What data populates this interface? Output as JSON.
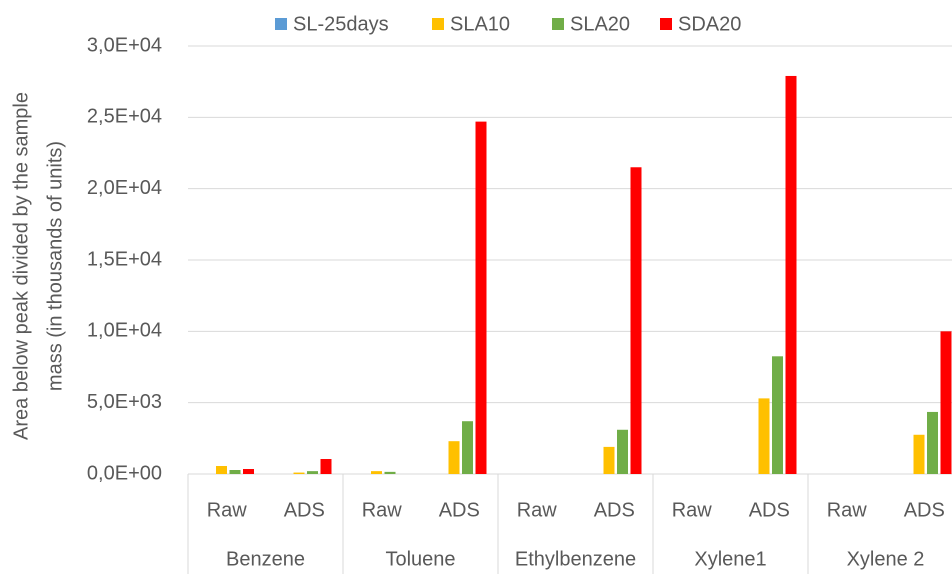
{
  "chart_data": {
    "type": "bar",
    "y_label": [
      "Area below peak divided by the sample",
      "mass (in thousands of units)"
    ],
    "categories": [
      "Raw",
      "ADS",
      "Raw",
      "ADS",
      "Raw",
      "ADS",
      "Raw",
      "ADS",
      "Raw",
      "ADS"
    ],
    "groups": [
      "Benzene",
      "Toluene",
      "Ethylbenzene",
      "Xylene1",
      "Xylene 2"
    ],
    "series": [
      {
        "name": "SL-25days",
        "color": "#5b9bd5",
        "values": [
          0,
          0,
          0,
          0,
          0,
          0,
          0,
          0,
          0,
          0
        ]
      },
      {
        "name": "SLA10",
        "color": "#ffc000",
        "values": [
          560,
          100,
          200,
          2300,
          0,
          1900,
          0,
          5300,
          0,
          2750
        ]
      },
      {
        "name": "SLA20",
        "color": "#70ad47",
        "values": [
          280,
          200,
          150,
          3700,
          0,
          3100,
          0,
          8250,
          0,
          4350
        ]
      },
      {
        "name": "SDA20",
        "color": "#ff0000",
        "values": [
          350,
          1050,
          0,
          24700,
          0,
          21500,
          0,
          27900,
          0,
          10000
        ]
      }
    ],
    "ylim": [
      0,
      30000
    ],
    "yticks": [
      {
        "value": 0,
        "label": "0,0E+00"
      },
      {
        "value": 5000,
        "label": "5,0E+03"
      },
      {
        "value": 10000,
        "label": "1,0E+04"
      },
      {
        "value": 15000,
        "label": "1,5E+04"
      },
      {
        "value": 20000,
        "label": "2,0E+04"
      },
      {
        "value": 25000,
        "label": "2,5E+04"
      },
      {
        "value": 30000,
        "label": "3,0E+04"
      }
    ],
    "grid": true,
    "legend": "top"
  }
}
